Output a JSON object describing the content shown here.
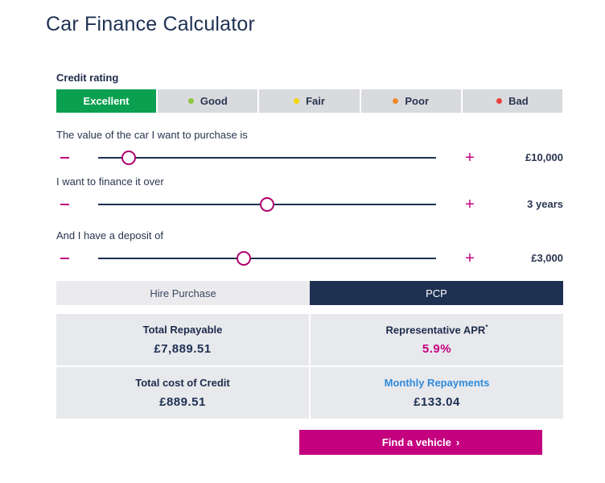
{
  "page": {
    "title": "Car Finance Calculator"
  },
  "credit": {
    "label": "Credit rating",
    "options": [
      {
        "label": "Excellent",
        "active": true,
        "dot_color": ""
      },
      {
        "label": "Good",
        "active": false,
        "dot_color": "#8cc63f"
      },
      {
        "label": "Fair",
        "active": false,
        "dot_color": "#f2d600"
      },
      {
        "label": "Poor",
        "active": false,
        "dot_color": "#f08a24"
      },
      {
        "label": "Bad",
        "active": false,
        "dot_color": "#e8403c"
      }
    ]
  },
  "sliders": {
    "value": {
      "label": "The value of the car I want to purchase is",
      "display": "£10,000",
      "position_fraction": 0.09
    },
    "term": {
      "label": "I want to finance it over",
      "display": "3 years",
      "position_fraction": 0.5
    },
    "deposit": {
      "label": "And I have a deposit of",
      "display": "£3,000",
      "position_fraction": 0.43
    },
    "minus_symbol": "−",
    "plus_symbol": "+"
  },
  "tabs": [
    {
      "label": "Hire Purchase",
      "active": false
    },
    {
      "label": "PCP",
      "active": true
    }
  ],
  "results": {
    "total_repayable": {
      "label": "Total Repayable",
      "value": "£7,889.51"
    },
    "apr": {
      "label": "Representative APR",
      "marker": "*",
      "value": "5.9%"
    },
    "total_cost": {
      "label": "Total cost of Credit",
      "value": "£889.51"
    },
    "monthly": {
      "label": "Monthly Repayments",
      "value": "£133.04"
    }
  },
  "cta": {
    "label": "Find a vehicle",
    "chevron": "›"
  },
  "colors": {
    "accent_pink": "#c4007f",
    "navy": "#1e3153",
    "green_active": "#0aa050",
    "link_blue": "#2f8ad9"
  }
}
